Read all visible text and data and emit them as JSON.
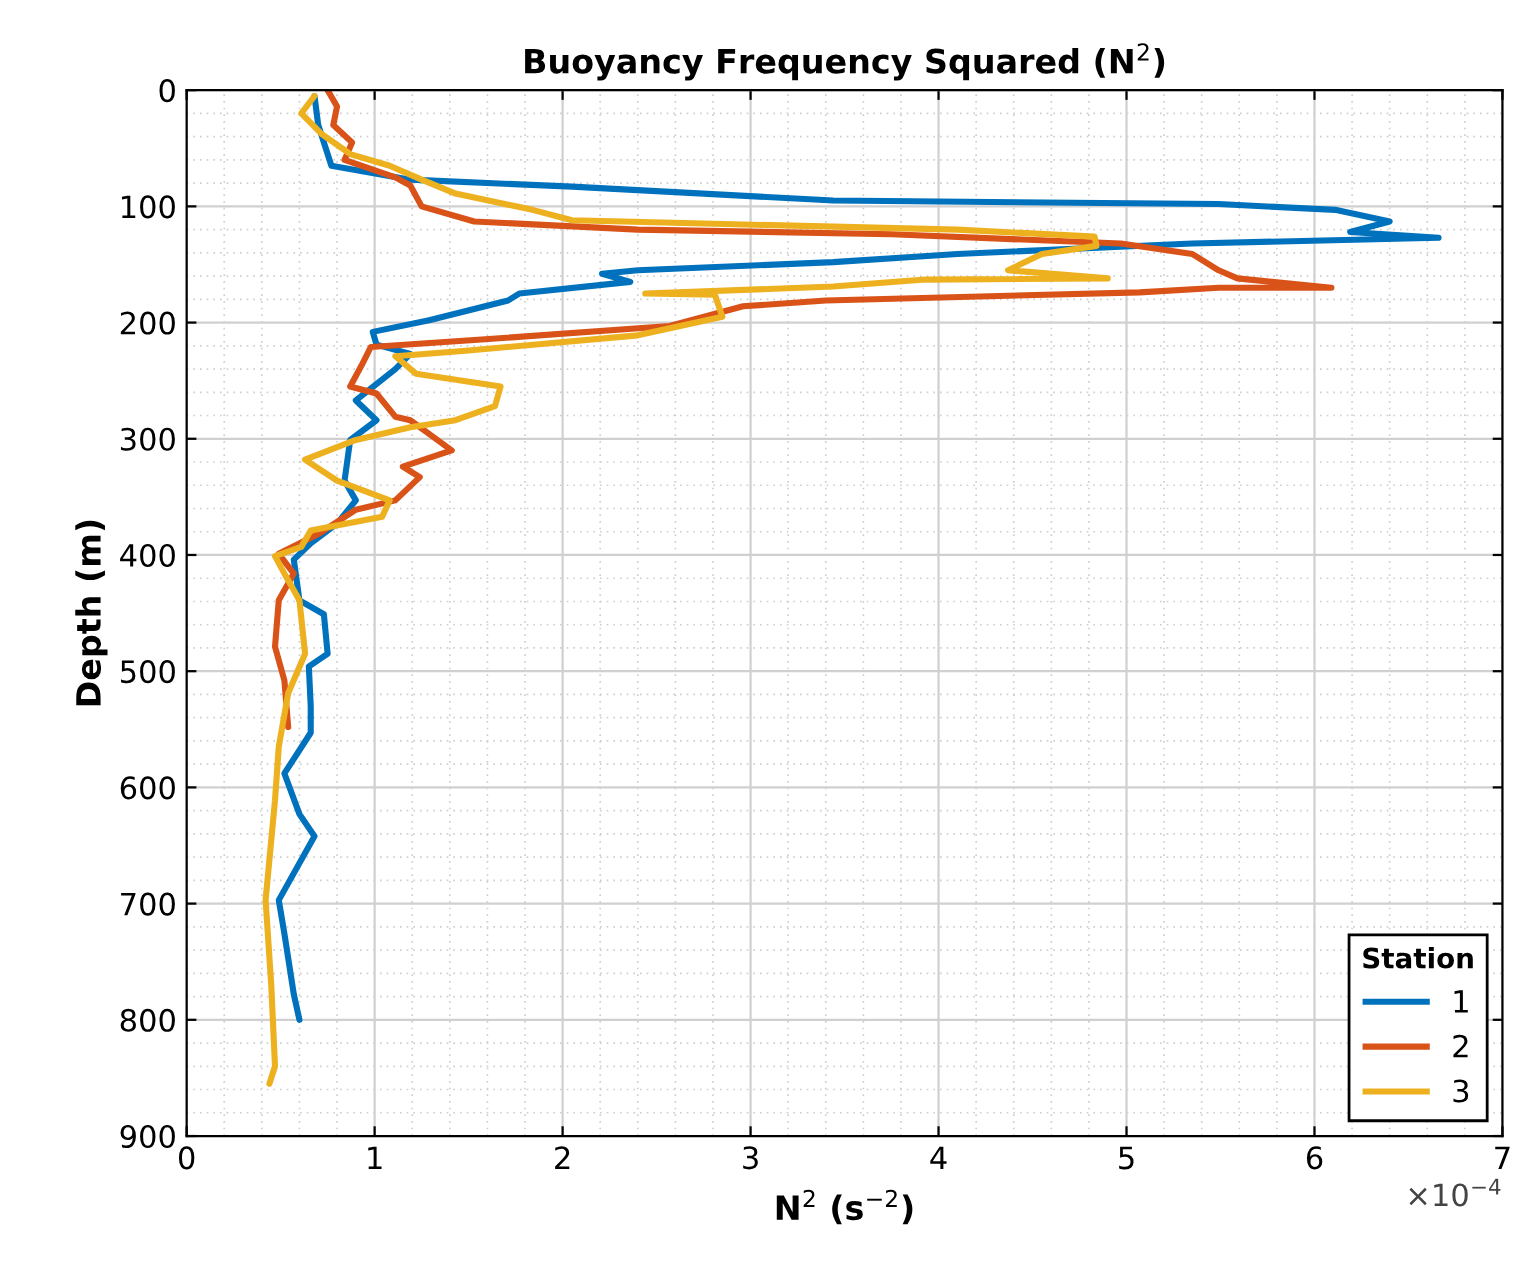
{
  "chart_data": {
    "type": "line",
    "title": "Buoyancy Frequency Squared (N$^{2}$)",
    "xlabel": "N$^{2}$ (s$^{−2}$)",
    "ylabel": "Depth (m)",
    "legend_title": "Station",
    "legend": "bottom right",
    "grid": true,
    "line_style": "solid",
    "xlim": [
      0,
      7
    ],
    "xticks": [
      0,
      1,
      2,
      3,
      4,
      5,
      6,
      7
    ],
    "ylim": [
      900,
      0
    ],
    "yticks": [
      0,
      100,
      200,
      300,
      400,
      500,
      600,
      700,
      800,
      900
    ],
    "annotations": [
      "×10$^{−4}$"
    ],
    "series": [
      {
        "name": "1",
        "color": "#0072bd",
        "x": [
          0.68,
          0.7,
          0.77,
          1.19,
          2.05,
          3.44,
          5.49,
          6.11,
          6.4,
          6.19,
          6.66,
          5.35,
          4.1,
          3.44,
          2.4,
          2.21,
          2.36,
          1.77,
          1.71,
          1.29,
          0.99,
          1.01,
          1.19,
          1.11,
          0.9,
          1.01,
          0.87,
          0.84,
          0.9,
          0.8,
          0.66,
          0.57,
          0.6,
          0.73,
          0.75,
          0.65,
          0.66,
          0.66,
          0.52,
          0.6,
          0.68,
          0.49,
          0.52,
          0.57,
          0.6
        ],
        "values": [
          5,
          30,
          65,
          77,
          83,
          95,
          98,
          103,
          113,
          122,
          127,
          132,
          141,
          148,
          155,
          158,
          165,
          175,
          181,
          198,
          208,
          219,
          227,
          240,
          267,
          284,
          301,
          336,
          353,
          373,
          390,
          404,
          439,
          451,
          485,
          496,
          530,
          553,
          588,
          623,
          642,
          697,
          726,
          778,
          800
        ]
      },
      {
        "name": "2",
        "color": "#d95319",
        "x": [
          0.75,
          0.8,
          0.78,
          0.88,
          0.84,
          1.11,
          1.19,
          1.25,
          1.53,
          2.4,
          3.75,
          4.97,
          5.35,
          5.49,
          5.59,
          6.09,
          5.49,
          5.07,
          3.4,
          2.96,
          2.57,
          1.53,
          0.98,
          0.93,
          0.87,
          1.01,
          1.11,
          1.19,
          1.41,
          1.15,
          1.24,
          1.11,
          0.9,
          0.7,
          0.49,
          0.57,
          0.49,
          0.47,
          0.52,
          0.54
        ],
        "values": [
          0,
          14,
          30,
          45,
          60,
          75,
          82,
          100,
          113,
          120,
          124,
          132,
          141,
          155,
          162,
          170,
          170,
          174,
          181,
          186,
          203,
          215,
          221,
          237,
          255,
          261,
          281,
          284,
          310,
          324,
          333,
          353,
          361,
          382,
          399,
          416,
          439,
          479,
          508,
          548
        ]
      },
      {
        "name": "3",
        "color": "#edb120",
        "x": [
          0.68,
          0.61,
          0.72,
          0.87,
          1.08,
          1.25,
          1.43,
          1.84,
          2.05,
          4.1,
          4.83,
          4.84,
          4.55,
          4.37,
          4.9,
          3.93,
          3.44,
          2.44,
          2.81,
          2.85,
          2.4,
          1.5,
          1.11,
          1.22,
          1.67,
          1.64,
          1.43,
          1.19,
          0.9,
          0.63,
          0.8,
          1.08,
          1.04,
          0.66,
          0.61,
          0.47,
          0.52,
          0.6,
          0.63,
          0.54,
          0.49,
          0.47,
          0.42,
          0.45,
          0.47,
          0.44
        ],
        "values": [
          5,
          20,
          38,
          55,
          65,
          77,
          89,
          103,
          112,
          120,
          126,
          134,
          141,
          155,
          162,
          163,
          169,
          175,
          176,
          195,
          211,
          224,
          229,
          244,
          255,
          272,
          284,
          290,
          301,
          318,
          336,
          353,
          367,
          379,
          393,
          401,
          416,
          439,
          485,
          519,
          565,
          611,
          697,
          770,
          840,
          855
        ]
      }
    ]
  }
}
